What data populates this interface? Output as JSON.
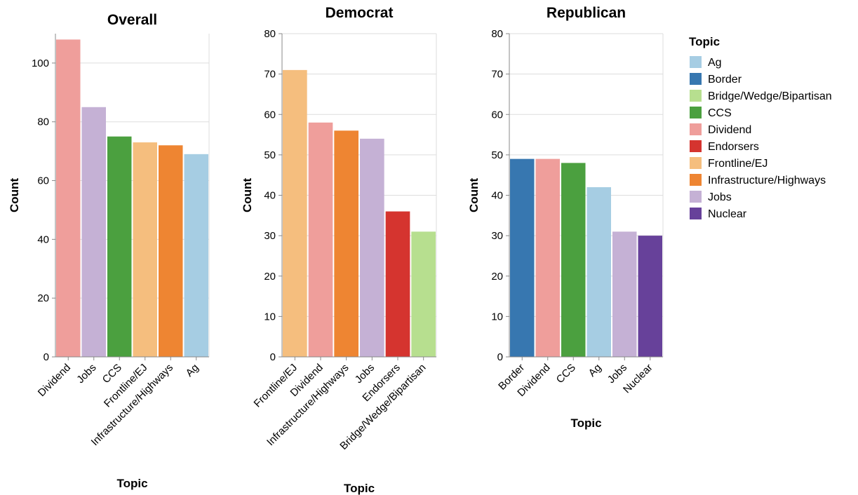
{
  "chart_data": [
    {
      "type": "bar",
      "title": "Overall",
      "xlabel": "Topic",
      "ylabel": "Count",
      "categories": [
        "Dividend",
        "Jobs",
        "CCS",
        "Frontline/EJ",
        "Infrastructure/Highways",
        "Ag"
      ],
      "values": [
        108,
        85,
        75,
        73,
        72,
        69
      ],
      "ylim": [
        0,
        110
      ],
      "yticks": [
        0,
        20,
        40,
        60,
        80,
        100
      ],
      "grid": true
    },
    {
      "type": "bar",
      "title": "Democrat",
      "xlabel": "Topic",
      "ylabel": "Count",
      "categories": [
        "Frontline/EJ",
        "Dividend",
        "Infrastructure/Highways",
        "Jobs",
        "Endorsers",
        "Bridge/Wedge/Bipartisan"
      ],
      "values": [
        71,
        58,
        56,
        54,
        36,
        31
      ],
      "ylim": [
        0,
        80
      ],
      "yticks": [
        0,
        10,
        20,
        30,
        40,
        50,
        60,
        70,
        80
      ],
      "grid": true
    },
    {
      "type": "bar",
      "title": "Republican",
      "xlabel": "Topic",
      "ylabel": "Count",
      "categories": [
        "Border",
        "Dividend",
        "CCS",
        "Ag",
        "Jobs",
        "Nuclear"
      ],
      "values": [
        49,
        49,
        48,
        42,
        31,
        30
      ],
      "ylim": [
        0,
        80
      ],
      "yticks": [
        0,
        10,
        20,
        30,
        40,
        50,
        60,
        70,
        80
      ],
      "grid": true
    }
  ],
  "legend": {
    "title": "Topic",
    "placement": "right",
    "items": [
      {
        "label": "Ag",
        "color": "#a6cde3"
      },
      {
        "label": "Border",
        "color": "#3777b0"
      },
      {
        "label": "Bridge/Wedge/Bipartisan",
        "color": "#b7df8f"
      },
      {
        "label": "CCS",
        "color": "#4ba03f"
      },
      {
        "label": "Dividend",
        "color": "#ef9e9b"
      },
      {
        "label": "Endorsers",
        "color": "#d5342f"
      },
      {
        "label": "Frontline/EJ",
        "color": "#f5be7e"
      },
      {
        "label": "Infrastructure/Highways",
        "color": "#ee8532"
      },
      {
        "label": "Jobs",
        "color": "#c5b1d5"
      },
      {
        "label": "Nuclear",
        "color": "#67419a"
      }
    ]
  }
}
